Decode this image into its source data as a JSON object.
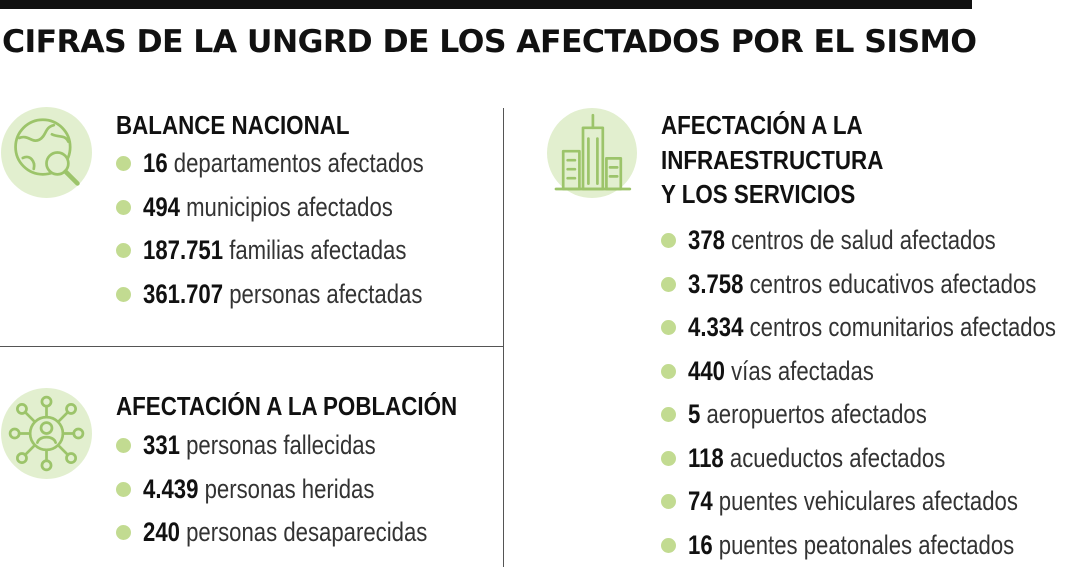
{
  "title": "CIFRAS DE LA UNGRD DE LOS AFECTADOS POR EL SISMO",
  "colors": {
    "accent": "#c2db91",
    "icon_bg": "#e2efcf",
    "icon_stroke": "#9cc46a"
  },
  "sections": {
    "balance": {
      "icon": "globe-magnifier-icon",
      "title": "BALANCE NACIONAL",
      "items": [
        {
          "value": "16",
          "label": "departamentos afectados"
        },
        {
          "value": "494",
          "label": "municipios afectados"
        },
        {
          "value": "187.751",
          "label": "familias afectadas"
        },
        {
          "value": "361.707",
          "label": "personas afectadas"
        }
      ]
    },
    "poblacion": {
      "icon": "people-network-icon",
      "title": "AFECTACIÓN A LA POBLACIÓN",
      "items": [
        {
          "value": "331",
          "label": "personas fallecidas"
        },
        {
          "value": "4.439",
          "label": "personas heridas"
        },
        {
          "value": "240",
          "label": "personas desaparecidas"
        }
      ]
    },
    "infraestructura": {
      "icon": "buildings-icon",
      "title_lines": [
        "AFECTACIÓN A LA",
        "INFRAESTRUCTURA",
        "Y LOS SERVICIOS"
      ],
      "items": [
        {
          "value": "378",
          "label": "centros de salud afectados"
        },
        {
          "value": "3.758",
          "label": "centros educativos afectados"
        },
        {
          "value": "4.334",
          "label": "centros comunitarios afectados"
        },
        {
          "value": "440",
          "label": "vías afectadas"
        },
        {
          "value": "5",
          "label": "aeropuertos afectados"
        },
        {
          "value": "118",
          "label": "acueductos afectados"
        },
        {
          "value": "74",
          "label": "puentes vehiculares afectados"
        },
        {
          "value": "16",
          "label": "puentes peatonales afectados"
        }
      ]
    }
  }
}
